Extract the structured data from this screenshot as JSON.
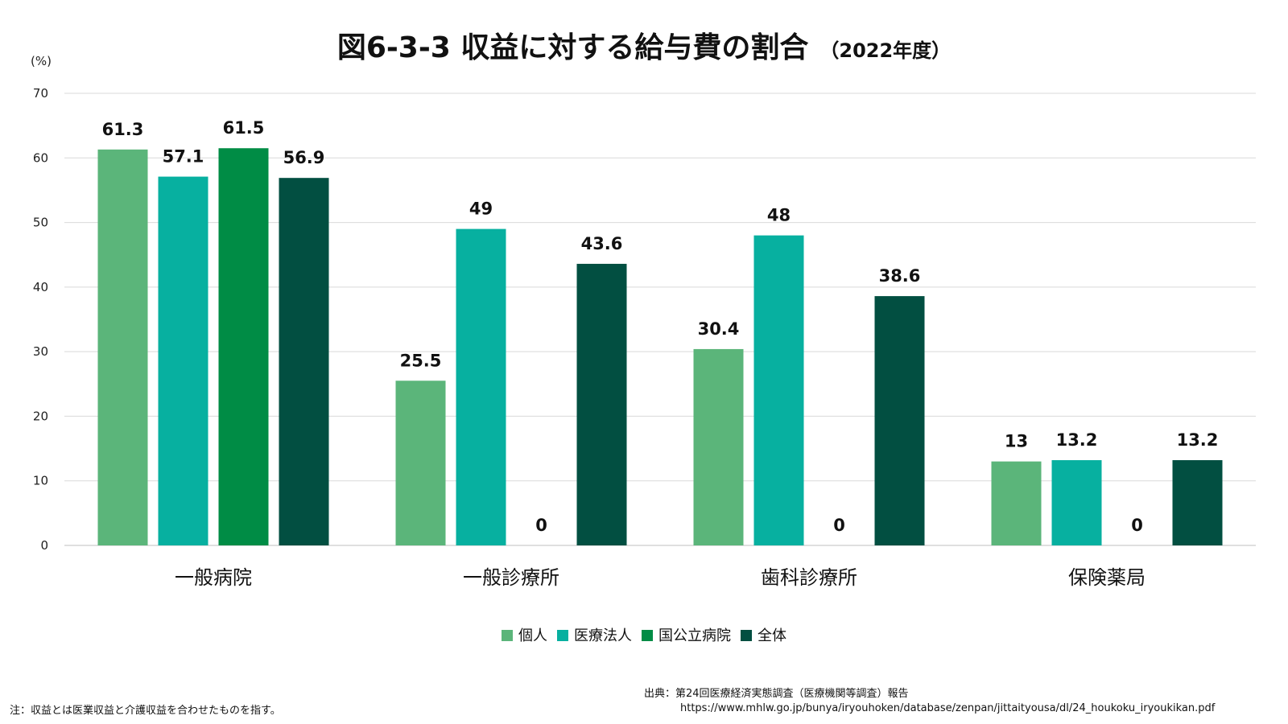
{
  "title": "図6-3-3 収益に対する給与費の割合",
  "subtitle": "（2022年度）",
  "unit_label": "(%)",
  "note": "注：収益とは医業収益と介護収益を合わせたものを指す。",
  "source_line1": "出典：第24回医療経済実態調査（医療機関等調査）報告",
  "source_line2": "https://www.mhlw.go.jp/bunya/iryouhoken/database/zenpan/jittaityousa/dl/24_houkoku_iryoukikan.pdf",
  "chart_data": {
    "type": "bar",
    "title": "図6-3-3 収益に対する給与費の割合",
    "xlabel": "",
    "ylabel": "(%)",
    "ylim": [
      0,
      70
    ],
    "yticks": [
      0,
      10,
      20,
      30,
      40,
      50,
      60,
      70
    ],
    "grid": true,
    "legend_position": "bottom",
    "categories": [
      "一般病院",
      "一般診療所",
      "歯科診療所",
      "保険薬局"
    ],
    "series": [
      {
        "name": "個人",
        "color": "#5bb57a",
        "values": [
          61.3,
          25.5,
          30.4,
          13
        ],
        "labels": [
          "61.3",
          "25.5",
          "30.4",
          "13"
        ]
      },
      {
        "name": "医療法人",
        "color": "#07b0a0",
        "values": [
          57.1,
          49,
          48,
          13.2
        ],
        "labels": [
          "57.1",
          "49",
          "48",
          "13.2"
        ]
      },
      {
        "name": "国公立病院",
        "color": "#008c45",
        "values": [
          61.5,
          0,
          0,
          0
        ],
        "labels": [
          "61.5",
          "0",
          "0",
          "0"
        ]
      },
      {
        "name": "全体",
        "color": "#024f41",
        "values": [
          56.9,
          43.6,
          38.6,
          13.2
        ],
        "labels": [
          "56.9",
          "43.6",
          "38.6",
          "13.2"
        ]
      }
    ]
  }
}
